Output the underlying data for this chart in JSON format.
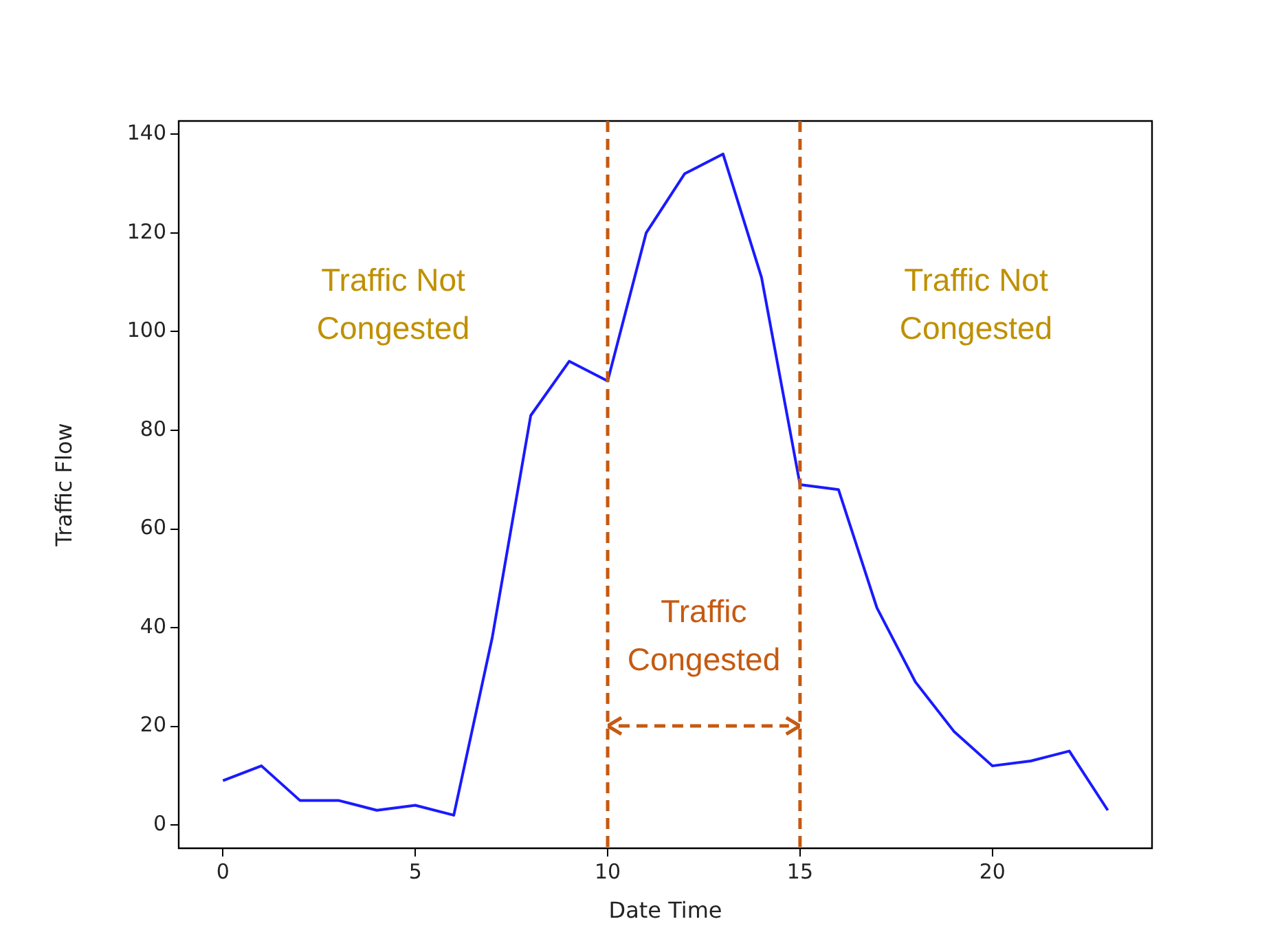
{
  "chart_data": {
    "type": "line",
    "xlabel": "Date Time",
    "ylabel": "Traffic Flow",
    "x": [
      0,
      1,
      2,
      3,
      4,
      5,
      6,
      7,
      8,
      9,
      10,
      11,
      12,
      13,
      14,
      15,
      16,
      17,
      18,
      19,
      20,
      21,
      22,
      23
    ],
    "series": [
      {
        "color": "#1a1aff",
        "values": [
          9,
          12,
          5,
          5,
          3,
          4,
          2,
          38,
          83,
          94,
          90,
          120,
          132,
          136,
          111,
          69,
          68,
          44,
          29,
          19,
          12,
          13,
          15,
          3
        ]
      }
    ],
    "xlim": [
      -1.15,
      24.15
    ],
    "xticks": [
      0,
      5,
      10,
      15,
      20
    ],
    "ylim": [
      -4.7,
      142.7
    ],
    "yticks": [
      0,
      20,
      40,
      60,
      80,
      100,
      120,
      140
    ],
    "grid": false,
    "legend": false,
    "marker": "none",
    "line_style": "solid",
    "ref_lines": [
      {
        "axis": "x",
        "value": 10,
        "color": "#c55a11",
        "line_style": "dashed"
      },
      {
        "axis": "x",
        "value": 15,
        "color": "#c55a11",
        "line_style": "dashed"
      }
    ],
    "annotations": [
      "Traffic Not Congested",
      "Traffic Congested",
      "Traffic Not Congested"
    ]
  }
}
